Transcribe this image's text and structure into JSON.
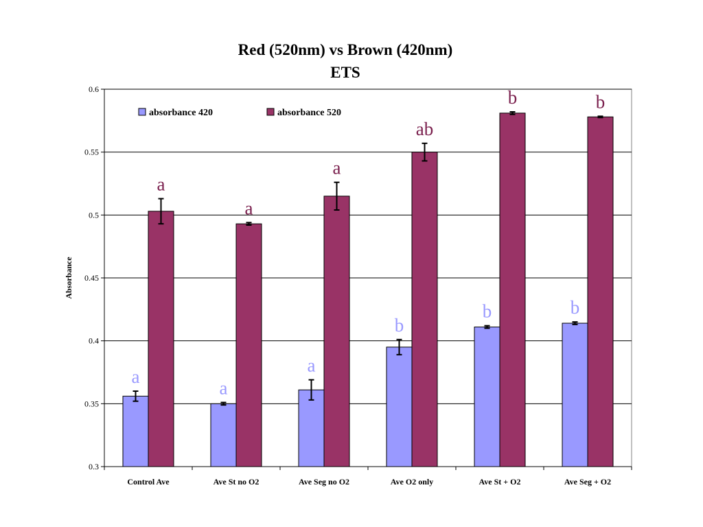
{
  "chart_data": {
    "type": "bar",
    "title": "Red (520nm) vs Brown (420nm)",
    "subtitle": "ETS",
    "xlabel": "",
    "ylabel": "Absorbance",
    "ylim": [
      0.3,
      0.6
    ],
    "yticks": [
      0.3,
      0.35,
      0.4,
      0.45,
      0.5,
      0.55,
      0.6
    ],
    "ytick_labels": [
      "0.3",
      "0.35",
      "0.4",
      "0.45",
      "0.5",
      "0.55",
      "0.6"
    ],
    "grid": true,
    "legend_position": "top-left",
    "categories": [
      "Control Ave",
      "Ave St no O2",
      "Ave Seg no O2",
      "Ave O2 only",
      "Ave St + O2",
      "Ave Seg + O2"
    ],
    "series": [
      {
        "name": "absorbance 420",
        "color": "#9999FF",
        "label_color": "#9999FF",
        "values": [
          0.356,
          0.35,
          0.361,
          0.395,
          0.411,
          0.414
        ],
        "errors": [
          0.004,
          0.001,
          0.008,
          0.006,
          0.001,
          0.001
        ],
        "labels": [
          "a",
          "a",
          "a",
          "b",
          "b",
          "b"
        ]
      },
      {
        "name": "absorbance 520",
        "color": "#993366",
        "label_color": "#7A1F4D",
        "values": [
          0.503,
          0.493,
          0.515,
          0.55,
          0.581,
          0.578
        ],
        "errors": [
          0.01,
          0.001,
          0.011,
          0.007,
          0.001,
          0.0005
        ],
        "labels": [
          "a",
          "a",
          "a",
          "ab",
          "b",
          "b"
        ]
      }
    ]
  }
}
